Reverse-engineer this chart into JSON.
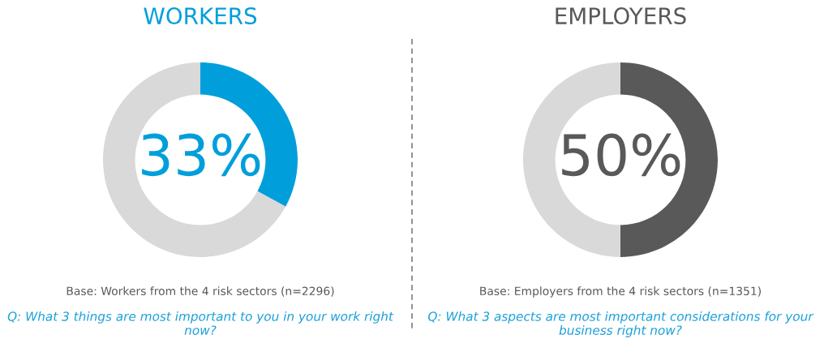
{
  "chart_data": [
    {
      "type": "donut",
      "title": "WORKERS",
      "categories": [
        null,
        null
      ],
      "values": [
        33,
        67
      ],
      "colors": [
        "#009fdb",
        "#d9d9d9"
      ],
      "annotations": [
        "33%",
        "Base: Workers from the 4 risk sectors (n=2296)",
        "Q: What 3 things are most important to you in your work right now?"
      ]
    },
    {
      "type": "donut",
      "title": "EMPLOYERS",
      "categories": [
        null,
        null
      ],
      "values": [
        50,
        50
      ],
      "colors": [
        "#595959",
        "#d9d9d9"
      ],
      "annotations": [
        "50%",
        "Base: Employers from the 4 risk sectors (n=1351)",
        "Q: What 3 aspects are most important considerations for your business right now?"
      ]
    }
  ]
}
